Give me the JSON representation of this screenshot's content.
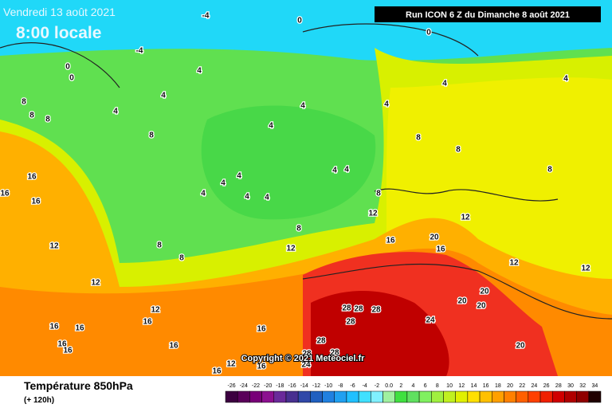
{
  "header": {
    "date": "Vendredi 13 août 2021",
    "time": "8:00 locale",
    "run": "Run ICON 6 Z du Dimanche 8 août 2021"
  },
  "copyright": "Copyright © 2021 Meteociel.fr",
  "footer": {
    "title": "Température 850hPa",
    "subtitle": "(+ 120h)"
  },
  "legend": {
    "labels": [
      -26,
      -24,
      -22,
      -20,
      -18,
      -16,
      -14,
      -12,
      -10,
      -8,
      -6,
      -4,
      -2,
      "0.0",
      2,
      4,
      6,
      8,
      10,
      12,
      14,
      16,
      18,
      20,
      22,
      24,
      26,
      28,
      30,
      32,
      34
    ],
    "colors": [
      "#3c0040",
      "#5a005a",
      "#780078",
      "#8c1090",
      "#6a2a9a",
      "#483090",
      "#3048a8",
      "#2060c0",
      "#2080e0",
      "#20a0f0",
      "#20c0ff",
      "#40e0ff",
      "#80f0ff",
      "#a0f0a0",
      "#40e040",
      "#60e060",
      "#80f060",
      "#a0f040",
      "#c0f020",
      "#e0f000",
      "#ffe000",
      "#ffc000",
      "#ffa000",
      "#ff8000",
      "#ff6000",
      "#ff4000",
      "#f02000",
      "#d00000",
      "#b00000",
      "#900000",
      "#200000"
    ]
  },
  "map": {
    "labels": [
      -4,
      0,
      0,
      -4,
      0,
      0,
      4,
      4,
      4,
      4,
      4,
      4,
      8,
      8,
      8,
      4,
      4,
      8,
      8,
      8,
      8,
      4,
      4,
      4,
      4,
      4,
      4,
      4,
      8,
      12,
      12,
      16,
      16,
      16,
      8,
      16,
      20,
      16,
      12,
      12,
      8,
      8,
      12,
      12,
      12,
      20,
      20,
      20,
      28,
      28,
      28,
      28,
      24,
      12,
      16,
      16,
      16,
      16,
      28,
      28,
      16,
      20,
      16,
      16,
      12,
      16,
      28,
      24,
      16
    ]
  }
}
